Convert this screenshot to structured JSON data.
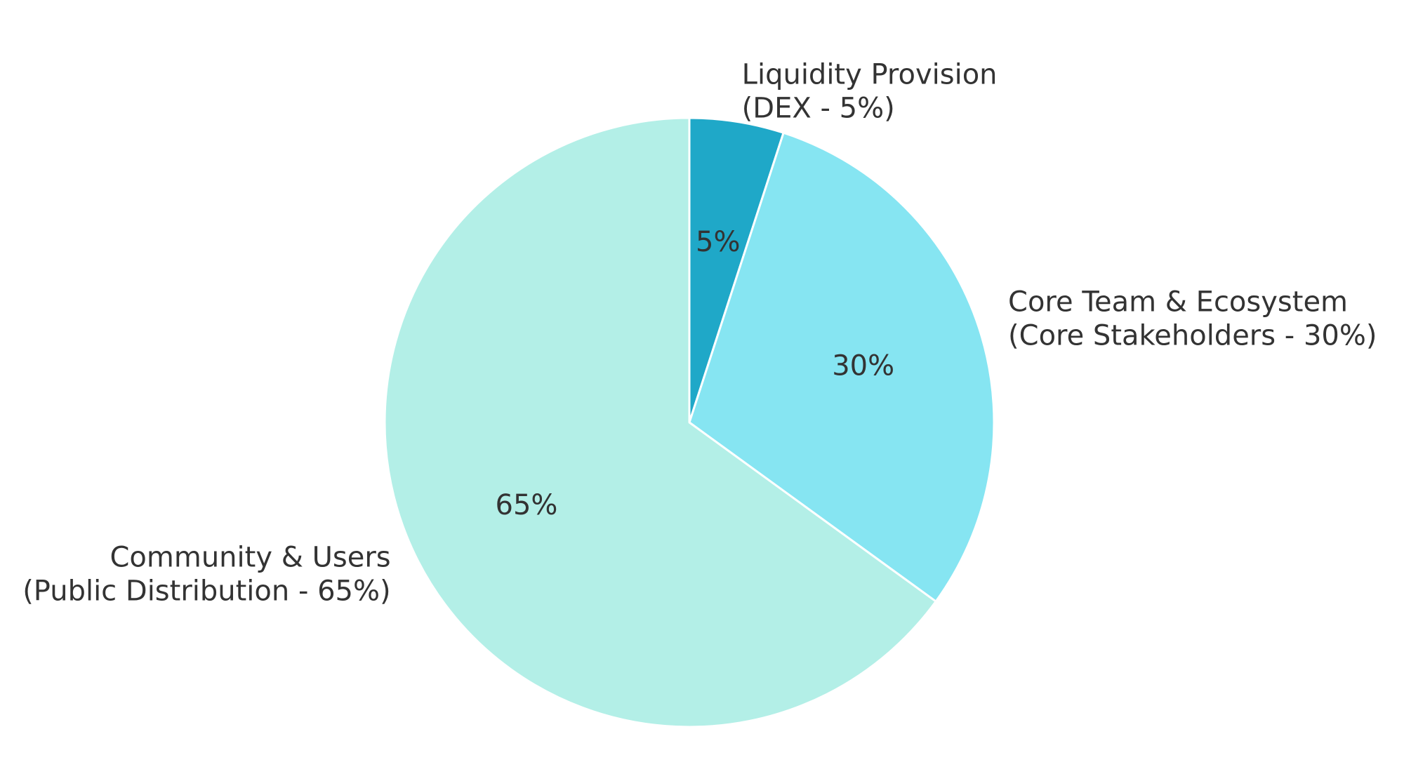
{
  "chart_data": {
    "type": "pie",
    "start_angle_deg": 90,
    "direction": "clockwise",
    "slices": [
      {
        "value": 5,
        "label_line1": "Liquidity Provision",
        "label_line2": "(DEX - 5%)",
        "pct_text": "5%",
        "color": "#1fa8c8"
      },
      {
        "value": 30,
        "label_line1": "Core Team & Ecosystem",
        "label_line2": "(Core Stakeholders - 30%)",
        "pct_text": "30%",
        "color": "#86e5f2"
      },
      {
        "value": 65,
        "label_line1": "Community & Users",
        "label_line2": "(Public Distribution - 65%)",
        "pct_text": "65%",
        "color": "#b3efe7"
      }
    ],
    "edge_color": "#ffffff",
    "text_color": "#333333"
  }
}
